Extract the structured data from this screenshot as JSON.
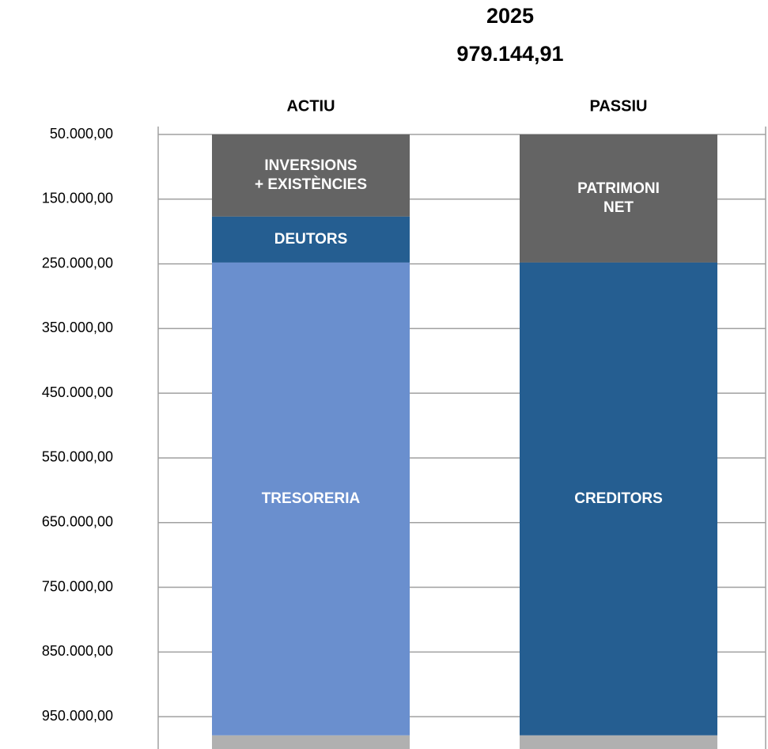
{
  "chart_data": {
    "type": "stacked-bar",
    "title": "2025",
    "subtitle": "979.144,91",
    "categories": [
      "ACTIU",
      "PASSIU"
    ],
    "series": [
      {
        "name": "INVERSIONS\n+ EXISTÈNCIES",
        "color": "#646464",
        "values": [
          127000,
          null
        ]
      },
      {
        "name": "DEUTORS",
        "color": "#255e91",
        "values": [
          71000,
          null
        ]
      },
      {
        "name": "TRESORERIA",
        "color": "#6a8fce",
        "values": [
          731000,
          null
        ]
      },
      {
        "name": "PATRIMONI\nNET",
        "color": "#646464",
        "values": [
          null,
          198000
        ]
      },
      {
        "name": "CREDITORS",
        "color": "#255e91",
        "values": [
          null,
          731000
        ]
      },
      {
        "name": null,
        "color": "#b0b0b0",
        "values": [
          21000,
          21000
        ]
      }
    ],
    "ylim": [
      50000,
      1000000
    ],
    "y_reversed": true,
    "yticks": [
      {
        "value": 50000,
        "label": "50.000,00"
      },
      {
        "value": 150000,
        "label": "150.000,00"
      },
      {
        "value": 250000,
        "label": "250.000,00"
      },
      {
        "value": 350000,
        "label": "350.000,00"
      },
      {
        "value": 450000,
        "label": "450.000,00"
      },
      {
        "value": 550000,
        "label": "550.000,00"
      },
      {
        "value": 650000,
        "label": "650.000,00"
      },
      {
        "value": 750000,
        "label": "750.000,00"
      },
      {
        "value": 850000,
        "label": "850.000,00"
      },
      {
        "value": 950000,
        "label": "950.000,00"
      }
    ],
    "grid": true
  }
}
